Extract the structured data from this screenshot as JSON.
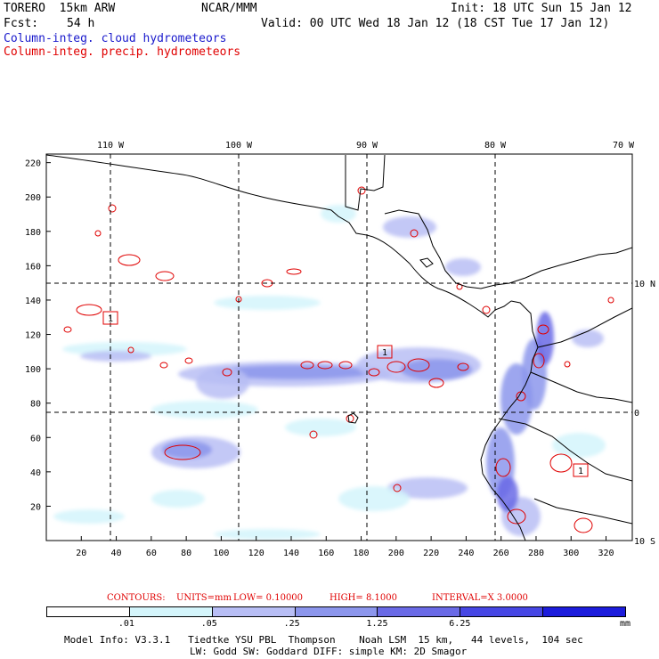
{
  "header": {
    "model": "TORERO  15km ARW",
    "center": "NCAR/MMM",
    "init": "Init: 18 UTC Sun 15 Jan 12",
    "fcst_label": "Fcst:",
    "fcst_value": "54 h",
    "valid": "Valid: 00 UTC Wed 18 Jan 12 (18 CST Tue 17 Jan 12)",
    "legend_cloud": "Column-integ. cloud hydrometeors",
    "legend_precip": "Column-integ. precip. hydrometeors"
  },
  "colors": {
    "cloud_text": "#1a1acc",
    "precip_text": "#e00000",
    "land_outline": "#000000",
    "grid": "#000000"
  },
  "map": {
    "lon_labels": [
      "110 W",
      "100 W",
      "90 W",
      "80 W",
      "70 W"
    ],
    "lat_labels": [
      "10 N",
      "0",
      "10 S"
    ],
    "x_ticks": [
      "20",
      "40",
      "60",
      "80",
      "100",
      "120",
      "140",
      "160",
      "180",
      "200",
      "220",
      "240",
      "260",
      "280",
      "300",
      "320"
    ],
    "y_ticks": [
      "20",
      "40",
      "60",
      "80",
      "100",
      "120",
      "140",
      "160",
      "180",
      "200",
      "220"
    ],
    "x_range": [
      0,
      335
    ],
    "y_range": [
      0,
      225
    ],
    "storm_markers": [
      "1",
      "1",
      "1"
    ]
  },
  "contour_info": {
    "contours": "CONTOURS:",
    "units": "UNITS=mm",
    "low": "LOW= 0.10000",
    "high": "HIGH= 8.1000",
    "interval": "INTERVAL=X 3.0000"
  },
  "colorbar": {
    "colors": [
      "#ffffff",
      "#d4f5fb",
      "#b8bef5",
      "#8c96ec",
      "#6a6ae6",
      "#4646e4",
      "#1c1cdc"
    ],
    "labels": [
      ".01",
      ".05",
      ".25",
      "1.25",
      "6.25"
    ],
    "unit": "mm"
  },
  "footer": {
    "line1": "Model Info: V3.3.1   Tiedtke YSU PBL  Thompson    Noah LSM  15 km,   44 levels,  104 sec",
    "line2": "LW: Godd SW: Goddard DIFF: simple KM: 2D Smagor"
  }
}
